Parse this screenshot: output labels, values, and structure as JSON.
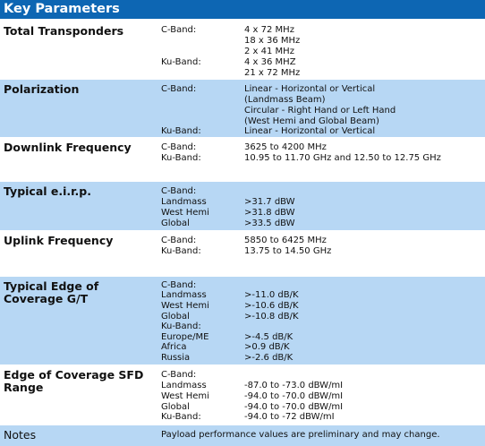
{
  "header": {
    "title": "Key Parameters"
  },
  "rows": [
    {
      "label": "Total Transponders",
      "lines": [
        [
          "C-Band:",
          "4 x 72 MHz"
        ],
        [
          "",
          "18 x 36 MHz"
        ],
        [
          "",
          "2 x 41 MHz"
        ],
        [
          "Ku-Band:",
          "4 x 36 MHZ"
        ],
        [
          "",
          "21 x 72 MHz"
        ]
      ]
    },
    {
      "label": "Polarization",
      "lines": [
        [
          "C-Band:",
          "Linear - Horizontal or Vertical"
        ],
        [
          "",
          "(Landmass Beam)"
        ],
        [
          "",
          "Circular - Right Hand or Left Hand"
        ],
        [
          "",
          "(West Hemi and Global Beam)"
        ],
        [
          "Ku-Band:",
          "Linear - Horizontal or Vertical"
        ]
      ]
    },
    {
      "label": "Downlink Frequency",
      "lines": [
        [
          "C-Band:",
          "3625 to 4200 MHz"
        ],
        [
          "Ku-Band:",
          "10.95 to 11.70 GHz and 12.50 to 12.75 GHz"
        ]
      ]
    },
    {
      "label": "Typical e.i.r.p.",
      "lines": [
        [
          "C-Band:",
          ""
        ],
        [
          "Landmass",
          ">31.7 dBW"
        ],
        [
          "West Hemi",
          ">31.8 dBW"
        ],
        [
          "Global",
          ">33.5 dBW"
        ]
      ]
    },
    {
      "label": "Uplink Frequency",
      "lines": [
        [
          "C-Band:",
          "5850 to 6425 MHz"
        ],
        [
          "Ku-Band:",
          "13.75 to 14.50 GHz"
        ]
      ]
    },
    {
      "label": "Typical Edge of Coverage G/T",
      "lines": [
        [
          "C-Band:",
          ""
        ],
        [
          "Landmass",
          ">-11.0 dB/K"
        ],
        [
          "West Hemi",
          ">-10.6 dB/K"
        ],
        [
          "Global",
          ">-10.8 dB/K"
        ],
        [
          "Ku-Band:",
          ""
        ],
        [
          "Europe/ME",
          ">-4.5 dB/K"
        ],
        [
          "Africa",
          ">0.9 dB/K"
        ],
        [
          "Russia",
          ">-2.6 dB/K"
        ]
      ]
    },
    {
      "label": "Edge of Coverage SFD Range",
      "lines": [
        [
          "C-Band:",
          ""
        ],
        [
          "Landmass",
          "-87.0 to -73.0 dBW/mI"
        ],
        [
          "West Hemi",
          "-94.0 to -70.0 dBW/mI"
        ],
        [
          "Global",
          "-94.0 to -70.0 dBW/mI"
        ],
        [
          "Ku-Band:",
          "-94.0 to -72 dBW/mI"
        ]
      ]
    },
    {
      "label": "Notes",
      "lines": [
        [
          "Payload performance values are preliminary and may change.",
          ""
        ]
      ]
    }
  ]
}
